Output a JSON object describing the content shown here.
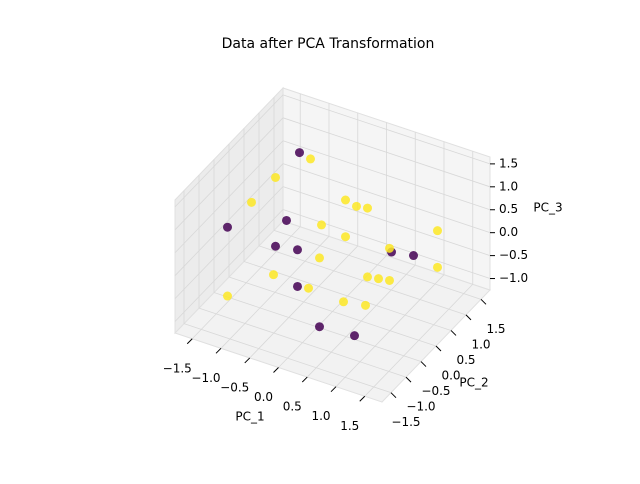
{
  "chart_data": {
    "type": "scatter3d",
    "title": "Data after PCA Transformation",
    "xlabel": "PC_1",
    "ylabel": "PC_2",
    "zlabel": "PC_3",
    "xlim": [
      -1.8,
      1.8
    ],
    "ylim": [
      -1.8,
      1.8
    ],
    "zlim": [
      -1.25,
      1.65
    ],
    "xticks": [
      {
        "value": -1.5,
        "label": "−1.5"
      },
      {
        "value": -1.0,
        "label": "−1.0"
      },
      {
        "value": -0.5,
        "label": "−0.5"
      },
      {
        "value": 0,
        "label": "0.0"
      },
      0.5,
      {
        "value": 1.0,
        "label": "1.0"
      },
      1.5
    ],
    "yticks": [
      {
        "value": -1.5,
        "label": "−1.5"
      },
      {
        "value": -1.0,
        "label": "−1.0"
      },
      {
        "value": -0.5,
        "label": "−0.5"
      },
      {
        "value": 0,
        "label": "0.0"
      },
      0.5,
      {
        "value": 1.0,
        "label": "1.0"
      },
      1.5
    ],
    "zticks": [
      {
        "value": -1.0,
        "label": "−1.0"
      },
      {
        "value": -0.5,
        "label": "−0.5"
      },
      {
        "value": 0,
        "label": "0.0"
      },
      0.5,
      {
        "value": 1.0,
        "label": "1.0"
      },
      1.5
    ],
    "grid": true,
    "x": [
      -1.2,
      -1.2,
      -1.2,
      -1.2,
      -0.4,
      -0.4,
      -0.4,
      -0.4,
      0.4,
      0.4,
      0.4,
      0.4,
      1.2,
      1.2,
      1.2,
      1.2,
      -1.2,
      -0.4,
      0.4,
      1.2,
      -1.2,
      -0.4,
      0.4,
      1.2,
      -0.8,
      0.8,
      0,
      0,
      -0.8,
      0.8
    ],
    "y": [
      -1.2,
      -0.4,
      0.4,
      1.2,
      -1.2,
      -0.4,
      0.4,
      1.2,
      -1.2,
      -0.4,
      0.4,
      1.2,
      -1.2,
      -0.4,
      0.4,
      1.2,
      -1.2,
      -0.4,
      0.4,
      1.2,
      0.4,
      1.2,
      -1.2,
      -0.4,
      0,
      0,
      0.8,
      -0.8,
      0.8,
      -0.8
    ],
    "z": [
      0.9,
      0.9,
      0.9,
      0.9,
      0.2,
      0.2,
      0.2,
      0.2,
      -0.6,
      -0.6,
      -0.6,
      -0.6,
      0.2,
      0.2,
      0.2,
      0.2,
      -0.6,
      -0.6,
      0.9,
      -0.6,
      -0.6,
      -0.6,
      0.9,
      0.9,
      0.4,
      -0.2,
      0.5,
      -0.2,
      1.2,
      -0.9
    ],
    "colors": [
      "#440154",
      "#fde725",
      "#fde725",
      "#440154",
      "#fde725",
      "#440154",
      "#fde725",
      "#fde725",
      "#440154",
      "#fde725",
      "#fde725",
      "#440154",
      "#fde725",
      "#fde725",
      "#440154",
      "#fde725",
      "#fde725",
      "#440154",
      "#fde725",
      "#fde725",
      "#440154",
      "#fde725",
      "#fde725",
      "#fde725",
      "#440154",
      "#fde725",
      "#fde725",
      "#fde725",
      "#fde725",
      "#440154"
    ]
  }
}
